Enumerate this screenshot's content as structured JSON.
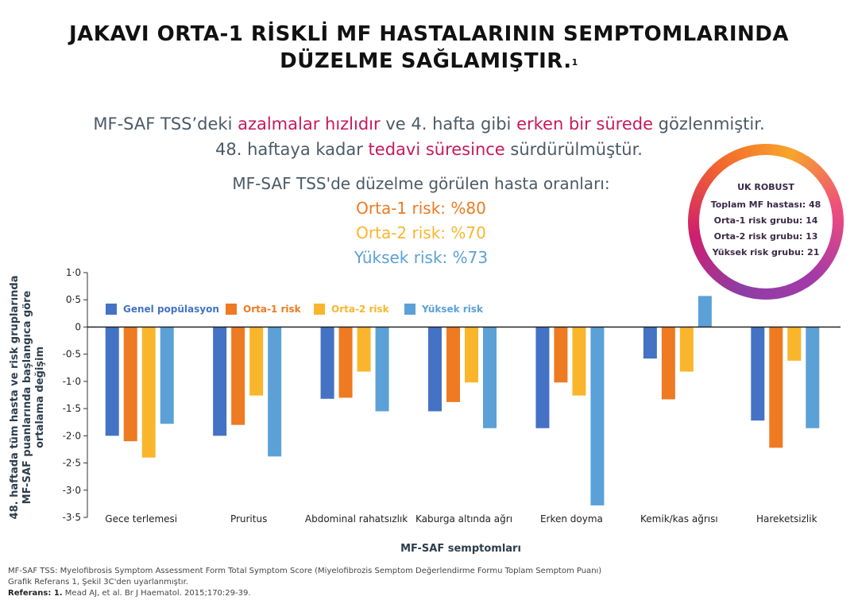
{
  "title": {
    "line1": "JAKAVI ORTA-1 RİSKLİ MF HASTALARININ SEMPTOMLARINDA",
    "line2": "DÜZELME SAĞLAMIŞTIR.",
    "ref": "1"
  },
  "subtitle": {
    "l1_a": "MF-SAF TSS’deki ",
    "l1_b": "azalmalar hızlıdır",
    "l1_c": " ve 4. hafta gibi ",
    "l1_d": "erken bir sürede",
    "l1_e": " gözlenmiştir.",
    "l2_a": "48. haftaya kadar ",
    "l2_b": "tedavi süresince",
    "l2_c": " sürdürülmüştür."
  },
  "rates": {
    "heading": "MF-SAF TSS'de düzelme görülen hasta oranları:",
    "orta1": "Orta-1 risk: %80",
    "orta2": "Orta-2 risk: %70",
    "yuksek": "Yüksek risk: %73"
  },
  "badge": {
    "title": "UK ROBUST",
    "total": "Toplam MF hastası: 48",
    "orta1": "Orta-1 risk grubu: 14",
    "orta2": "Orta-2 risk grubu: 13",
    "yuksek": "Yüksek risk grubu: 21"
  },
  "colors": {
    "genel": "#4472c4",
    "orta1": "#ee7a22",
    "orta2": "#f9b62c",
    "yuksek": "#5ba1d7"
  },
  "chart_data": {
    "type": "bar",
    "title": "",
    "xlabel": "MF-SAF semptomları",
    "ylabel_line1": "48. haftada tüm hasta ve risk gruplarında",
    "ylabel_line2": "MF-SAF puanlarında başlangıca göre",
    "ylabel_line3": "ortalama değişim",
    "ylim": [
      -3.5,
      1.0
    ],
    "yticks": [
      "1·0",
      "0·5",
      "0",
      "-0·5",
      "-1·0",
      "-1·5",
      "-2·0",
      "-2·5",
      "-3·0",
      "-3·5"
    ],
    "categories": [
      "Gece terlemesi",
      "Pruritus",
      "Abdominal rahatsızlık",
      "Kaburga altında ağrı",
      "Erken doyma",
      "Kemik/kas ağrısı",
      "Hareketsizlik"
    ],
    "series": [
      {
        "name": "Genel popülasyon",
        "color": "#4472c4",
        "values": [
          -2.0,
          -2.0,
          -1.32,
          -1.55,
          -1.86,
          -0.58,
          -1.72
        ]
      },
      {
        "name": "Orta-1 risk",
        "color": "#ee7a22",
        "values": [
          -2.1,
          -1.8,
          -1.3,
          -1.38,
          -1.02,
          -1.33,
          -2.22
        ]
      },
      {
        "name": "Orta-2 risk",
        "color": "#f9b62c",
        "values": [
          -2.4,
          -1.26,
          -0.82,
          -1.02,
          -1.26,
          -0.82,
          -0.62
        ]
      },
      {
        "name": "Yüksek risk",
        "color": "#5ba1d7",
        "values": [
          -1.78,
          -2.38,
          -1.55,
          -1.86,
          -3.28,
          0.57,
          -1.86
        ]
      }
    ]
  },
  "footer": {
    "line1": "MF-SAF TSS: Myelofibrosis Symptom Assessment Form Total Symptom Score (Miyelofibrozis Semptom Değerlendirme Formu Toplam Semptom Puanı)",
    "line2": "Grafik Referans 1, Şekil 3C'den uyarlanmıştır.",
    "ref_label": "Referans: 1.",
    "ref_text": " Mead AJ, et al. Br J Haematol. 2015;170:29-39."
  }
}
